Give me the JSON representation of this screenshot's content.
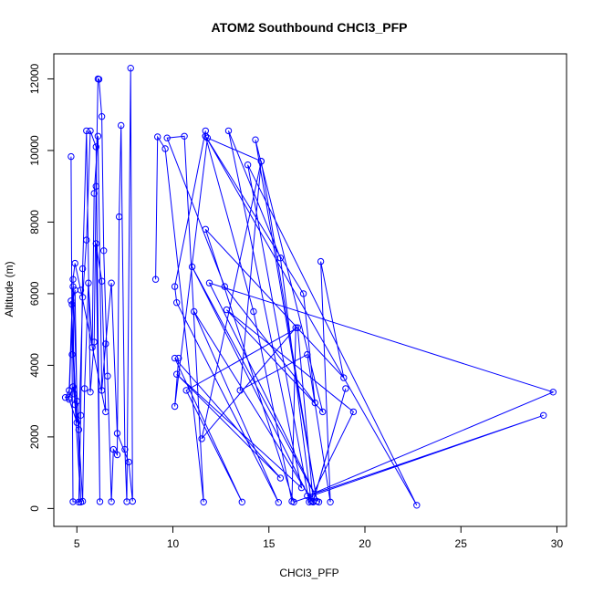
{
  "chart_data": {
    "type": "scatter",
    "title": "ATOM2 Southbound CHCl3_PFP",
    "xlabel": "CHCl3_PFP",
    "ylabel": "Altitude (m)",
    "xlim": [
      3.8,
      30.5
    ],
    "ylim": [
      -500,
      12700
    ],
    "xticks": [
      5,
      10,
      15,
      20,
      25,
      30
    ],
    "yticks": [
      0,
      2000,
      4000,
      6000,
      8000,
      10000,
      12000
    ],
    "grid": false,
    "legend": "none",
    "colors": {
      "series": "#0000ff",
      "frame": "#000000"
    },
    "series": [
      {
        "mode": "lines+markers",
        "marker": "open-circle",
        "points": [
          [
            4.7,
            9830
          ],
          [
            4.75,
            4300
          ],
          [
            4.8,
            190
          ],
          [
            5.1,
            180
          ],
          [
            5.2,
            2600
          ],
          [
            5.3,
            6700
          ],
          [
            5.5,
            10550
          ],
          [
            5.7,
            3250
          ],
          [
            5.9,
            4650
          ],
          [
            6.0,
            9000
          ],
          [
            6.1,
            12000
          ],
          [
            6.15,
            11990
          ],
          [
            6.3,
            10950
          ],
          [
            6.4,
            7200
          ],
          [
            6.6,
            3700
          ],
          [
            6.8,
            190
          ],
          [
            6.9,
            1650
          ],
          [
            7.1,
            1500
          ],
          [
            7.2,
            8150
          ],
          [
            7.3,
            10700
          ],
          [
            7.5,
            1650
          ],
          [
            7.6,
            190
          ],
          [
            7.8,
            12300
          ],
          [
            7.9,
            200
          ],
          [
            7.7,
            1300
          ],
          [
            7.1,
            2100
          ],
          [
            6.8,
            6300
          ],
          [
            6.5,
            4600
          ],
          [
            6.3,
            3300
          ],
          [
            6.1,
            10400
          ],
          [
            5.9,
            8800
          ],
          [
            5.8,
            4500
          ],
          [
            5.6,
            6300
          ],
          [
            5.4,
            3350
          ],
          [
            5.3,
            200
          ],
          [
            5.0,
            3000
          ],
          [
            4.9,
            6100
          ],
          [
            4.75,
            5700
          ],
          [
            4.6,
            3300
          ],
          [
            4.4,
            3100
          ],
          [
            4.6,
            3100
          ],
          [
            4.8,
            3400
          ],
          [
            5.1,
            2200
          ],
          [
            5.3,
            5900
          ],
          [
            5.5,
            7500
          ],
          [
            5.7,
            10550
          ],
          [
            6.0,
            10100
          ],
          [
            6.2,
            190
          ],
          [
            6.0,
            7400
          ],
          [
            6.3,
            6350
          ],
          [
            6.5,
            2700
          ],
          [
            5.2,
            6100
          ],
          [
            4.9,
            6850
          ],
          [
            4.8,
            6400
          ],
          [
            5.2,
            180
          ],
          [
            4.9,
            2900
          ],
          [
            4.7,
            5800
          ],
          [
            5.0,
            2400
          ],
          [
            4.6,
            3050
          ],
          [
            4.8,
            6200
          ],
          [
            4.85,
            3200
          ]
        ]
      },
      {
        "mode": "lines+markers",
        "marker": "open-circle",
        "points": [
          [
            9.1,
            6400
          ],
          [
            9.2,
            10380
          ],
          [
            9.6,
            10050
          ],
          [
            11.6,
            180
          ],
          [
            10.6,
            10400
          ],
          [
            9.7,
            10350
          ],
          [
            12.7,
            6200
          ],
          [
            17.4,
            2950
          ],
          [
            16.8,
            6000
          ],
          [
            11.7,
            10400
          ],
          [
            11.7,
            10550
          ],
          [
            10.1,
            6200
          ],
          [
            10.2,
            5750
          ],
          [
            15.5,
            170
          ],
          [
            11.1,
            5500
          ],
          [
            17.3,
            180
          ],
          [
            19.0,
            3350
          ],
          [
            17.3,
            200
          ],
          [
            16.5,
            5050
          ],
          [
            10.7,
            3300
          ],
          [
            13.6,
            180
          ],
          [
            10.1,
            4200
          ],
          [
            15.6,
            850
          ],
          [
            10.2,
            3750
          ],
          [
            16.7,
            580
          ],
          [
            12.9,
            10550
          ],
          [
            15.6,
            7000
          ],
          [
            17.2,
            200
          ],
          [
            11.0,
            6750
          ],
          [
            17.6,
            180
          ],
          [
            11.9,
            6300
          ],
          [
            29.8,
            3250
          ],
          [
            17.0,
            350
          ],
          [
            29.3,
            2600
          ],
          [
            16.3,
            180
          ],
          [
            11.7,
            7800
          ],
          [
            18.9,
            3650
          ],
          [
            17.7,
            6900
          ],
          [
            18.2,
            180
          ],
          [
            17.0,
            4300
          ],
          [
            13.5,
            3300
          ],
          [
            14.6,
            9700
          ],
          [
            17.5,
            200
          ],
          [
            14.3,
            10300
          ],
          [
            17.8,
            2700
          ],
          [
            12.8,
            5550
          ],
          [
            19.4,
            2700
          ],
          [
            17.1,
            180
          ],
          [
            13.9,
            9600
          ],
          [
            22.7,
            90
          ],
          [
            11.7,
            10400
          ],
          [
            14.2,
            5500
          ],
          [
            16.2,
            200
          ],
          [
            16.4,
            5050
          ],
          [
            11.5,
            1950
          ],
          [
            14.6,
            9700
          ],
          [
            11.8,
            10350
          ],
          [
            10.1,
            2850
          ],
          [
            10.3,
            4200
          ]
        ]
      }
    ]
  }
}
